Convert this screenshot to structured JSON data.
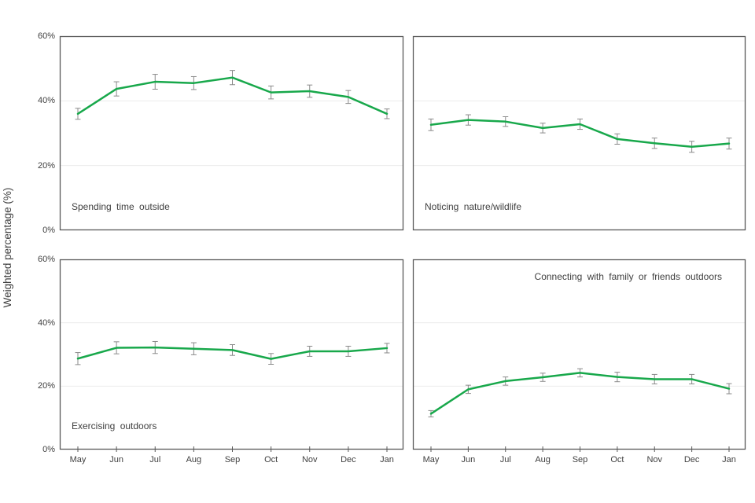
{
  "figure": {
    "y_axis_title": "Weighted percentage (%)",
    "background": "#ffffff",
    "colors": {
      "line": "#18a84b",
      "error_bar": "#8a8a8a",
      "panel_border": "#595959",
      "gridline": "#ebebeb",
      "text": "#404040"
    }
  },
  "chart_data": [
    {
      "type": "line",
      "title": "Spending time outside",
      "title_position": "bottom-left",
      "categories": [
        "May",
        "Jun",
        "Jul",
        "Aug",
        "Sep",
        "Oct",
        "Nov",
        "Dec",
        "Jan"
      ],
      "values": [
        36.0,
        43.7,
        45.9,
        45.5,
        47.2,
        42.6,
        43.0,
        41.2,
        36.0
      ],
      "errors": [
        1.7,
        2.2,
        2.3,
        2.0,
        2.2,
        2.0,
        1.9,
        2.0,
        1.5
      ],
      "ylim": [
        0,
        60
      ],
      "ytick_values": [
        0,
        20,
        40,
        60
      ],
      "ytick_labels": [
        "0%",
        "20%",
        "40%",
        "60%"
      ],
      "grid": true,
      "show_x_tick_labels": false,
      "show_y_tick_labels": true
    },
    {
      "type": "line",
      "title": "Noticing nature/wildlife",
      "title_position": "bottom-left",
      "categories": [
        "May",
        "Jun",
        "Jul",
        "Aug",
        "Sep",
        "Oct",
        "Nov",
        "Dec",
        "Jan"
      ],
      "values": [
        32.6,
        34.1,
        33.6,
        31.6,
        32.8,
        28.2,
        26.9,
        25.8,
        26.8
      ],
      "errors": [
        1.8,
        1.6,
        1.5,
        1.5,
        1.6,
        1.6,
        1.6,
        1.7,
        1.7
      ],
      "ylim": [
        0,
        60
      ],
      "ytick_values": [
        0,
        20,
        40,
        60
      ],
      "ytick_labels": [
        "0%",
        "20%",
        "40%",
        "60%"
      ],
      "grid": true,
      "show_x_tick_labels": false,
      "show_y_tick_labels": false
    },
    {
      "type": "line",
      "title": "Exercising outdoors",
      "title_position": "bottom-left",
      "categories": [
        "May",
        "Jun",
        "Jul",
        "Aug",
        "Sep",
        "Oct",
        "Nov",
        "Dec",
        "Jan"
      ],
      "values": [
        28.7,
        32.1,
        32.2,
        31.8,
        31.4,
        28.6,
        31.0,
        31.0,
        32.0
      ],
      "errors": [
        1.9,
        1.9,
        1.9,
        1.9,
        1.7,
        1.7,
        1.6,
        1.6,
        1.5
      ],
      "ylim": [
        0,
        60
      ],
      "ytick_values": [
        0,
        20,
        40,
        60
      ],
      "ytick_labels": [
        "0%",
        "20%",
        "40%",
        "60%"
      ],
      "grid": true,
      "show_x_tick_labels": true,
      "show_y_tick_labels": true
    },
    {
      "type": "line",
      "title": "Connecting with family or friends outdoors",
      "title_position": "top-right",
      "categories": [
        "May",
        "Jun",
        "Jul",
        "Aug",
        "Sep",
        "Oct",
        "Nov",
        "Dec",
        "Jan"
      ],
      "values": [
        11.3,
        19.0,
        21.6,
        22.8,
        24.2,
        22.9,
        22.2,
        22.2,
        19.2
      ],
      "errors": [
        1.0,
        1.3,
        1.3,
        1.3,
        1.3,
        1.5,
        1.5,
        1.5,
        1.6
      ],
      "ylim": [
        0,
        60
      ],
      "ytick_values": [
        0,
        20,
        40,
        60
      ],
      "ytick_labels": [
        "0%",
        "20%",
        "40%",
        "60%"
      ],
      "grid": true,
      "show_x_tick_labels": true,
      "show_y_tick_labels": false
    }
  ]
}
